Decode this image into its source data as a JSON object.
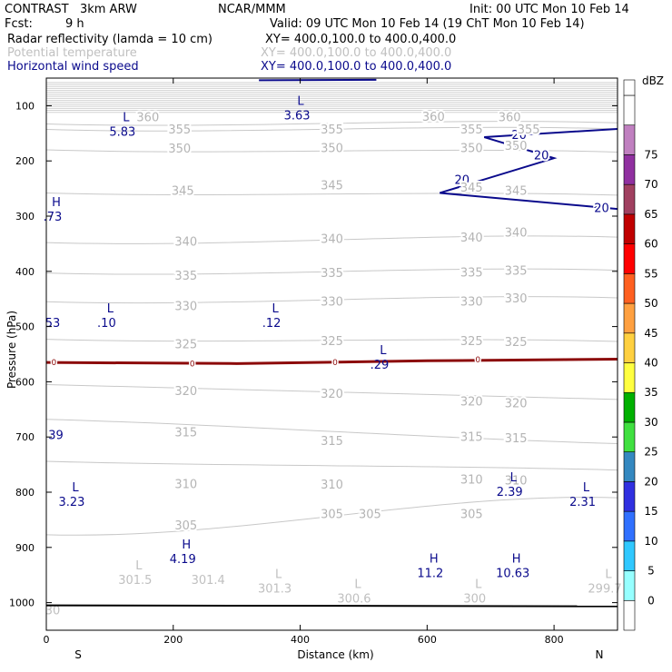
{
  "header": {
    "model": "CONTRAST   3km ARW",
    "org": "NCAR/MMM",
    "init": "Init: 00 UTC Mon 10 Feb 14",
    "fcst_label": "Fcst:",
    "fcst_value": "9 h",
    "valid": "Valid: 09 UTC Mon 10 Feb 14 (19 ChT Mon 10 Feb 14)",
    "fields": [
      {
        "name": "Radar reflectivity (lamda = 10 cm)",
        "xy": "XY= 400.0,100.0 to 400.0,400.0",
        "color": "#000000"
      },
      {
        "name": "Potential temperature",
        "xy": "XY= 400.0,100.0 to 400.0,400.0",
        "color": "#c0c0c0"
      },
      {
        "name": "Horizontal wind speed",
        "xy": "XY= 400.0,100.0 to 400.0,400.0",
        "color": "#0a0a8c"
      }
    ]
  },
  "chart_data": {
    "type": "cross-section contour",
    "xlabel": "Distance (km)",
    "ylabel": "Pressure (hPa)",
    "xlim": [
      0,
      900
    ],
    "ylim": [
      1050,
      50
    ],
    "x_ticks": [
      0,
      200,
      400,
      600,
      800
    ],
    "y_ticks": [
      100,
      200,
      300,
      400,
      500,
      600,
      700,
      800,
      900,
      1000
    ],
    "x_end_labels": {
      "left": "S",
      "right": "N"
    },
    "theta_contours": [
      {
        "value": 360,
        "p_left": 133,
        "p_right": 131
      },
      {
        "value": 355,
        "p_left": 143,
        "p_right": 142
      },
      {
        "value": 350,
        "p_left": 180,
        "p_right": 184
      },
      {
        "value": 345,
        "p_left": 258,
        "p_right": 262
      },
      {
        "value": 340,
        "p_left": 348,
        "p_right": 338
      },
      {
        "value": 335,
        "p_left": 403,
        "p_right": 398
      },
      {
        "value": 330,
        "p_left": 455,
        "p_right": 448
      },
      {
        "value": 325,
        "p_left": 523,
        "p_right": 527
      },
      {
        "value": 320,
        "p_left": 605,
        "p_right": 632
      },
      {
        "value": 315,
        "p_left": 668,
        "p_right": 712
      },
      {
        "value": 310,
        "p_left": 744,
        "p_right": 760
      },
      {
        "value": 305,
        "p_left": 877,
        "p_right": 810
      }
    ],
    "theta_contour_labels": [
      {
        "text": "360",
        "x": 160,
        "p": 120
      },
      {
        "text": "360",
        "x": 610,
        "p": 119
      },
      {
        "text": "360",
        "x": 730,
        "p": 120
      },
      {
        "text": "355",
        "x": 210,
        "p": 142
      },
      {
        "text": "355",
        "x": 450,
        "p": 142
      },
      {
        "text": "355",
        "x": 670,
        "p": 142
      },
      {
        "text": "355",
        "x": 760,
        "p": 142
      },
      {
        "text": "350",
        "x": 210,
        "p": 177
      },
      {
        "text": "350",
        "x": 450,
        "p": 176
      },
      {
        "text": "350",
        "x": 670,
        "p": 176
      },
      {
        "text": "350",
        "x": 740,
        "p": 172
      },
      {
        "text": "345",
        "x": 215,
        "p": 253
      },
      {
        "text": "345",
        "x": 450,
        "p": 243
      },
      {
        "text": "345",
        "x": 670,
        "p": 247
      },
      {
        "text": "345",
        "x": 740,
        "p": 253
      },
      {
        "text": "340",
        "x": 220,
        "p": 345
      },
      {
        "text": "340",
        "x": 450,
        "p": 340
      },
      {
        "text": "340",
        "x": 670,
        "p": 338
      },
      {
        "text": "340",
        "x": 740,
        "p": 329
      },
      {
        "text": "335",
        "x": 220,
        "p": 407
      },
      {
        "text": "335",
        "x": 450,
        "p": 402
      },
      {
        "text": "335",
        "x": 670,
        "p": 401
      },
      {
        "text": "335",
        "x": 740,
        "p": 398
      },
      {
        "text": "330",
        "x": 220,
        "p": 462
      },
      {
        "text": "330",
        "x": 450,
        "p": 454
      },
      {
        "text": "330",
        "x": 670,
        "p": 454
      },
      {
        "text": "330",
        "x": 740,
        "p": 448
      },
      {
        "text": "325",
        "x": 220,
        "p": 531
      },
      {
        "text": "325",
        "x": 450,
        "p": 525
      },
      {
        "text": "325",
        "x": 670,
        "p": 525
      },
      {
        "text": "325",
        "x": 740,
        "p": 527
      },
      {
        "text": "320",
        "x": 220,
        "p": 616
      },
      {
        "text": "320",
        "x": 450,
        "p": 621
      },
      {
        "text": "320",
        "x": 670,
        "p": 635
      },
      {
        "text": "320",
        "x": 740,
        "p": 638
      },
      {
        "text": "315",
        "x": 220,
        "p": 691
      },
      {
        "text": "315",
        "x": 450,
        "p": 706
      },
      {
        "text": "315",
        "x": 670,
        "p": 699
      },
      {
        "text": "315",
        "x": 740,
        "p": 701
      },
      {
        "text": "310",
        "x": 220,
        "p": 784
      },
      {
        "text": "310",
        "x": 450,
        "p": 785
      },
      {
        "text": "310",
        "x": 670,
        "p": 776
      },
      {
        "text": "310",
        "x": 740,
        "p": 778
      },
      {
        "text": "305",
        "x": 220,
        "p": 859
      },
      {
        "text": "305",
        "x": 450,
        "p": 839
      },
      {
        "text": "305",
        "x": 510,
        "p": 839
      },
      {
        "text": "305",
        "x": 670,
        "p": 839
      }
    ],
    "extrema": [
      {
        "kind": "L",
        "value": "5.83",
        "x": 120,
        "p": 138,
        "color": "#0a0a8c"
      },
      {
        "kind": "L",
        "value": "3.63",
        "x": 395,
        "p": 108,
        "color": "#0a0a8c"
      },
      {
        "kind": "H",
        "value": ".73",
        "x": 10,
        "p": 292,
        "color": "#0a0a8c"
      },
      {
        "kind": "L",
        "value": ".10",
        "x": 95,
        "p": 484,
        "color": "#0a0a8c"
      },
      {
        "kind": "L",
        "value": ".12",
        "x": 355,
        "p": 484,
        "color": "#0a0a8c"
      },
      {
        "kind": "",
        "value": "53",
        "x": 10,
        "p": 484,
        "color": "#0a0a8c"
      },
      {
        "kind": "L",
        "value": ".29",
        "x": 525,
        "p": 560,
        "color": "#0a0a8c"
      },
      {
        "kind": "",
        "value": "39",
        "x": 15,
        "p": 687,
        "color": "#0a0a8c"
      },
      {
        "kind": "L",
        "value": "3.23",
        "x": 40,
        "p": 808,
        "color": "#0a0a8c"
      },
      {
        "kind": "L",
        "value": "2.39",
        "x": 730,
        "p": 790,
        "color": "#0a0a8c"
      },
      {
        "kind": "L",
        "value": "2.31",
        "x": 845,
        "p": 808,
        "color": "#0a0a8c"
      },
      {
        "kind": "H",
        "value": "4.19",
        "x": 215,
        "p": 912,
        "color": "#0a0a8c"
      },
      {
        "kind": "H",
        "value": "11.2",
        "x": 605,
        "p": 937,
        "color": "#0a0a8c"
      },
      {
        "kind": "H",
        "value": "10.63",
        "x": 735,
        "p": 937,
        "color": "#0a0a8c"
      },
      {
        "kind": "L",
        "value": "301.5",
        "x": 140,
        "p": 950,
        "color": "#c0c0c0"
      },
      {
        "kind": "",
        "value": "301.4",
        "x": 255,
        "p": 950,
        "color": "#c0c0c0"
      },
      {
        "kind": "L",
        "value": "301.3",
        "x": 360,
        "p": 965,
        "color": "#c0c0c0"
      },
      {
        "kind": "L",
        "value": "300.6",
        "x": 485,
        "p": 983,
        "color": "#c0c0c0"
      },
      {
        "kind": "L",
        "value": "300",
        "x": 675,
        "p": 983,
        "color": "#c0c0c0"
      },
      {
        "kind": "L",
        "value": "299.7",
        "x": 880,
        "p": 965,
        "color": "#c0c0c0"
      },
      {
        "kind": "",
        "value": "30",
        "x": 10,
        "p": 1005,
        "color": "#c0c0c0"
      }
    ],
    "wind_contours": [
      {
        "value": 20,
        "points": [
          [
            900,
            142
          ],
          [
            690,
            157
          ],
          [
            800,
            195
          ],
          [
            620,
            258
          ],
          [
            900,
            287
          ]
        ],
        "labels": [
          {
            "x": 745,
            "p": 152
          },
          {
            "x": 780,
            "p": 189
          },
          {
            "x": 655,
            "p": 233
          },
          {
            "x": 875,
            "p": 284
          }
        ]
      },
      {
        "value": 20,
        "points": [
          [
            335,
            54
          ],
          [
            520,
            53
          ]
        ],
        "labels": []
      }
    ],
    "reflectivity_contours": [
      {
        "value": 0,
        "points": [
          [
            0,
            565
          ],
          [
            300,
            567
          ],
          [
            600,
            562
          ],
          [
            900,
            559
          ]
        ],
        "labels": [
          {
            "x": 12,
            "p": 565
          },
          {
            "x": 230,
            "p": 567
          },
          {
            "x": 455,
            "p": 565
          },
          {
            "x": 680,
            "p": 560
          }
        ]
      }
    ],
    "surface_line_p": 1005,
    "colorbar": {
      "unit": "dBZ",
      "levels": [
        "0",
        "5",
        "10",
        "15",
        "20",
        "25",
        "30",
        "35",
        "40",
        "45",
        "50",
        "55",
        "60",
        "65",
        "70",
        "75"
      ],
      "colors": [
        "#ffffff",
        "#96ffff",
        "#30c8ff",
        "#3070ff",
        "#3030e0",
        "#3488c0",
        "#40e040",
        "#00b000",
        "#ffff40",
        "#ffd040",
        "#ffa040",
        "#ff6020",
        "#ff0000",
        "#c00000",
        "#a04060",
        "#9030a0",
        "#c080c0",
        "#ffffff"
      ]
    }
  }
}
